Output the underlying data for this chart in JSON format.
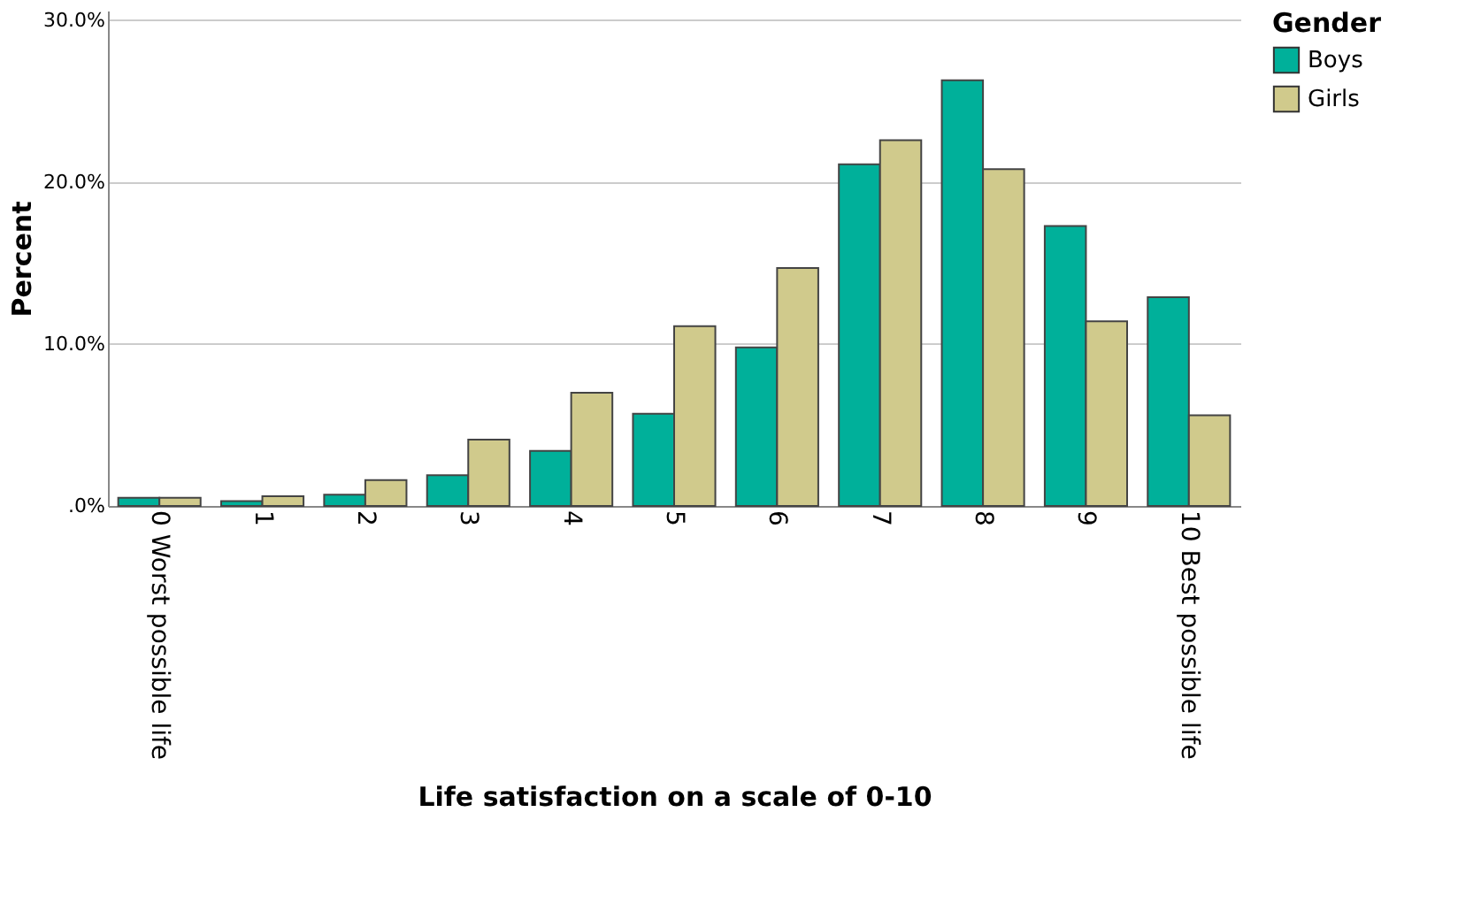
{
  "chart_data": {
    "type": "bar",
    "categories": [
      "0 Worst possible life",
      "1",
      "2",
      "3",
      "4",
      "5",
      "6",
      "7",
      "8",
      "9",
      "10 Best possible life"
    ],
    "series": [
      {
        "name": "Boys",
        "color": "#00b09a",
        "values": [
          0.5,
          0.3,
          0.7,
          1.9,
          3.4,
          5.7,
          9.8,
          21.1,
          26.3,
          17.3,
          12.9
        ]
      },
      {
        "name": "Girls",
        "color": "#d0ca8c",
        "values": [
          0.5,
          0.6,
          1.6,
          4.1,
          7.0,
          11.1,
          14.7,
          22.6,
          20.8,
          11.4,
          5.6
        ]
      }
    ],
    "xlabel": "Life satisfaction on a scale of 0-10",
    "ylabel": "Percent",
    "legend_title": "Gender",
    "ylim": [
      0,
      30.6
    ],
    "yticks": [
      {
        "value": 0,
        "label": ".0%"
      },
      {
        "value": 10,
        "label": "10.0%"
      },
      {
        "value": 20,
        "label": "20.0%"
      },
      {
        "value": 30,
        "label": "30.0%"
      }
    ],
    "grid": "y",
    "legend": "top right"
  }
}
